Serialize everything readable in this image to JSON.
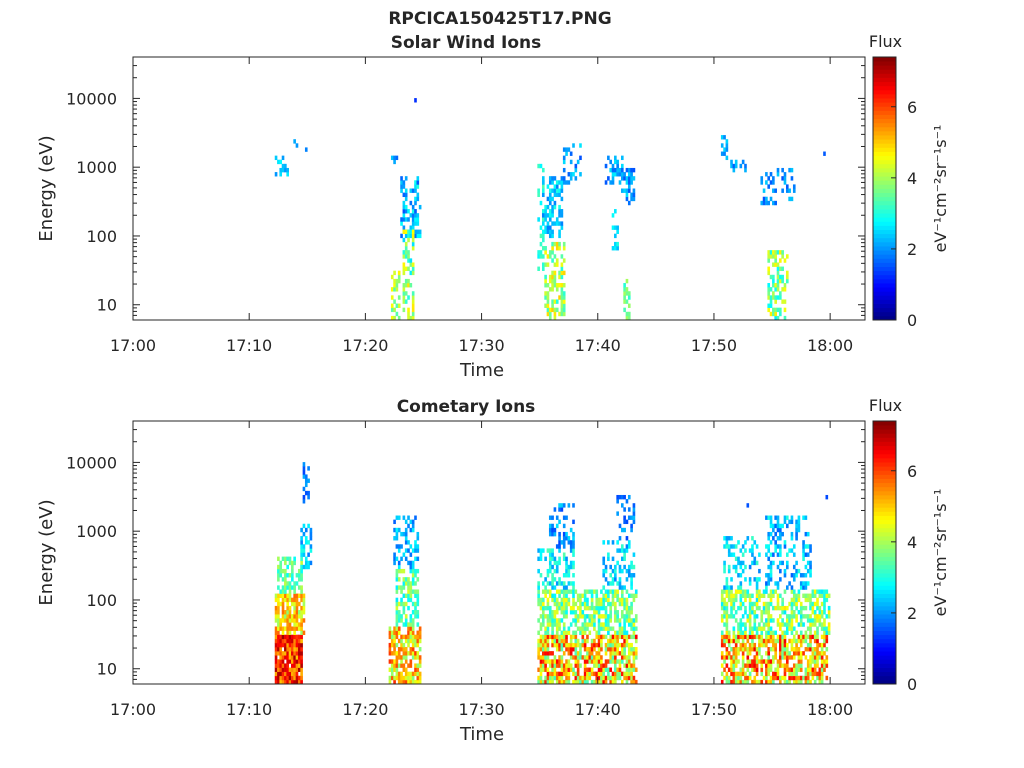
{
  "figure": {
    "title": "RPCICA150425T17.PNG"
  },
  "chart_data": [
    {
      "type": "heatmap",
      "title": "Solar Wind Ions",
      "xlabel": "Time",
      "ylabel": "Energy (eV)",
      "x_ticks": [
        "17:00",
        "17:10",
        "17:20",
        "17:30",
        "17:40",
        "17:50",
        "18:00"
      ],
      "x_range_minutes": [
        0,
        63
      ],
      "y_scale": "log",
      "y_ticks": [
        "10",
        "100",
        "1000",
        "10000"
      ],
      "y_range": [
        6,
        40000
      ],
      "colorbar": {
        "title": "Flux",
        "label": "eV⁻¹cm⁻²sr⁻¹s⁻¹",
        "range": [
          0,
          7.4
        ],
        "ticks": [
          "0",
          "2",
          "4",
          "6"
        ]
      },
      "bursts": [
        {
          "t": [
            12.2,
            13.3
          ],
          "e": [
            700,
            1500
          ],
          "level": [
            2.0,
            2.8
          ],
          "density": 0.5
        },
        {
          "t": [
            13.8,
            14.2
          ],
          "e": [
            1800,
            3400
          ],
          "level": [
            1.6,
            2.2
          ],
          "density": 0.4
        },
        {
          "t": [
            14.8,
            15.2
          ],
          "e": [
            1600,
            2000
          ],
          "level": [
            1.6,
            2.2
          ],
          "density": 0.5
        },
        {
          "t": [
            22.2,
            22.8
          ],
          "e": [
            1000,
            1500
          ],
          "level": [
            1.6,
            2.4
          ],
          "density": 0.4
        },
        {
          "t": [
            22.2,
            23.0
          ],
          "e": [
            6,
            30
          ],
          "level": [
            3.0,
            4.8
          ],
          "density": 0.6
        },
        {
          "t": [
            23.0,
            24.8
          ],
          "e": [
            100,
            700
          ],
          "level": [
            1.5,
            3.0
          ],
          "density": 0.45
        },
        {
          "t": [
            23.2,
            24.2
          ],
          "e": [
            6,
            120
          ],
          "level": [
            2.5,
            4.8
          ],
          "density": 0.45
        },
        {
          "t": [
            24.2,
            24.4
          ],
          "e": [
            8800,
            9600
          ],
          "level": [
            1.2,
            1.6
          ],
          "density": 0.9
        },
        {
          "t": [
            34.8,
            35.4
          ],
          "e": [
            30,
            1300
          ],
          "level": [
            2.6,
            3.4
          ],
          "density": 0.45
        },
        {
          "t": [
            35.4,
            37.2
          ],
          "e": [
            6,
            80
          ],
          "level": [
            3.0,
            5.0
          ],
          "density": 0.55
        },
        {
          "t": [
            35.2,
            37.0
          ],
          "e": [
            100,
            700
          ],
          "level": [
            1.8,
            3.0
          ],
          "density": 0.45
        },
        {
          "t": [
            37.0,
            38.6
          ],
          "e": [
            600,
            2200
          ],
          "level": [
            1.5,
            2.6
          ],
          "density": 0.3
        },
        {
          "t": [
            40.6,
            42.2
          ],
          "e": [
            600,
            1500
          ],
          "level": [
            1.5,
            2.8
          ],
          "density": 0.55
        },
        {
          "t": [
            42.0,
            43.2
          ],
          "e": [
            300,
            1000
          ],
          "level": [
            1.5,
            2.6
          ],
          "density": 0.45
        },
        {
          "t": [
            41.2,
            41.8
          ],
          "e": [
            60,
            300
          ],
          "level": [
            2.2,
            3.0
          ],
          "density": 0.3
        },
        {
          "t": [
            42.2,
            42.8
          ],
          "e": [
            6,
            25
          ],
          "level": [
            3.0,
            4.0
          ],
          "density": 0.5
        },
        {
          "t": [
            50.6,
            51.2
          ],
          "e": [
            1200,
            2900
          ],
          "level": [
            1.8,
            2.6
          ],
          "density": 0.5
        },
        {
          "t": [
            51.2,
            53.0
          ],
          "e": [
            800,
            1200
          ],
          "level": [
            1.6,
            2.4
          ],
          "density": 0.4
        },
        {
          "t": [
            54.0,
            57.0
          ],
          "e": [
            300,
            1000
          ],
          "level": [
            1.5,
            2.4
          ],
          "density": 0.35
        },
        {
          "t": [
            54.6,
            56.4
          ],
          "e": [
            6,
            60
          ],
          "level": [
            2.6,
            4.8
          ],
          "density": 0.45
        },
        {
          "t": [
            59.4,
            59.7
          ],
          "e": [
            1400,
            1600
          ],
          "level": [
            1.5,
            2.0
          ],
          "density": 0.8
        }
      ]
    },
    {
      "type": "heatmap",
      "title": "Cometary Ions",
      "xlabel": "Time",
      "ylabel": "Energy (eV)",
      "x_ticks": [
        "17:00",
        "17:10",
        "17:20",
        "17:30",
        "17:40",
        "17:50",
        "18:00"
      ],
      "x_range_minutes": [
        0,
        63
      ],
      "y_scale": "log",
      "y_ticks": [
        "10",
        "100",
        "1000",
        "10000"
      ],
      "y_range": [
        6,
        40000
      ],
      "colorbar": {
        "title": "Flux",
        "label": "eV⁻¹cm⁻²sr⁻¹s⁻¹",
        "range": [
          0,
          7.4
        ],
        "ticks": [
          "0",
          "2",
          "4",
          "6"
        ]
      },
      "bursts": [
        {
          "t": [
            12.2,
            14.6
          ],
          "e": [
            6,
            30
          ],
          "level": [
            5.0,
            7.2
          ],
          "density": 0.95
        },
        {
          "t": [
            12.2,
            14.8
          ],
          "e": [
            30,
            120
          ],
          "level": [
            3.8,
            5.8
          ],
          "density": 0.75
        },
        {
          "t": [
            12.4,
            14.6
          ],
          "e": [
            120,
            400
          ],
          "level": [
            2.8,
            4.2
          ],
          "density": 0.55
        },
        {
          "t": [
            14.4,
            15.4
          ],
          "e": [
            300,
            1300
          ],
          "level": [
            1.8,
            3.0
          ],
          "density": 0.45
        },
        {
          "t": [
            14.6,
            15.2
          ],
          "e": [
            2400,
            9500
          ],
          "level": [
            1.4,
            2.2
          ],
          "density": 0.3
        },
        {
          "t": [
            22.0,
            24.8
          ],
          "e": [
            6,
            40
          ],
          "level": [
            3.6,
            6.2
          ],
          "density": 0.7
        },
        {
          "t": [
            22.6,
            24.6
          ],
          "e": [
            40,
            300
          ],
          "level": [
            2.6,
            4.4
          ],
          "density": 0.6
        },
        {
          "t": [
            22.4,
            24.6
          ],
          "e": [
            300,
            1600
          ],
          "level": [
            1.6,
            2.8
          ],
          "density": 0.45
        },
        {
          "t": [
            24.2,
            24.4
          ],
          "e": [
            9500,
            10500
          ],
          "level": [
            1.2,
            1.6
          ],
          "density": 0.9
        },
        {
          "t": [
            34.8,
            43.4
          ],
          "e": [
            6,
            30
          ],
          "level": [
            3.2,
            6.6
          ],
          "density": 0.75
        },
        {
          "t": [
            34.8,
            43.4
          ],
          "e": [
            30,
            150
          ],
          "level": [
            2.6,
            4.6
          ],
          "density": 0.6
        },
        {
          "t": [
            34.8,
            38.0
          ],
          "e": [
            150,
            600
          ],
          "level": [
            2.0,
            3.4
          ],
          "density": 0.5
        },
        {
          "t": [
            35.8,
            38.0
          ],
          "e": [
            600,
            2500
          ],
          "level": [
            1.4,
            2.6
          ],
          "density": 0.35
        },
        {
          "t": [
            40.4,
            43.2
          ],
          "e": [
            150,
            700
          ],
          "level": [
            1.8,
            3.2
          ],
          "density": 0.45
        },
        {
          "t": [
            41.6,
            43.2
          ],
          "e": [
            700,
            3500
          ],
          "level": [
            1.4,
            2.4
          ],
          "density": 0.3
        },
        {
          "t": [
            50.6,
            59.8
          ],
          "e": [
            6,
            30
          ],
          "level": [
            3.4,
            6.6
          ],
          "density": 0.7
        },
        {
          "t": [
            50.6,
            60.0
          ],
          "e": [
            30,
            150
          ],
          "level": [
            2.6,
            4.8
          ],
          "density": 0.6
        },
        {
          "t": [
            50.8,
            54.0
          ],
          "e": [
            150,
            800
          ],
          "level": [
            1.8,
            3.2
          ],
          "density": 0.4
        },
        {
          "t": [
            54.4,
            58.4
          ],
          "e": [
            150,
            1600
          ],
          "level": [
            1.6,
            3.0
          ],
          "density": 0.4
        },
        {
          "t": [
            52.6,
            53.0
          ],
          "e": [
            2200,
            2600
          ],
          "level": [
            1.4,
            1.8
          ],
          "density": 0.6
        },
        {
          "t": [
            59.4,
            59.7
          ],
          "e": [
            2800,
            3200
          ],
          "level": [
            1.4,
            1.8
          ],
          "density": 0.6
        }
      ]
    }
  ]
}
